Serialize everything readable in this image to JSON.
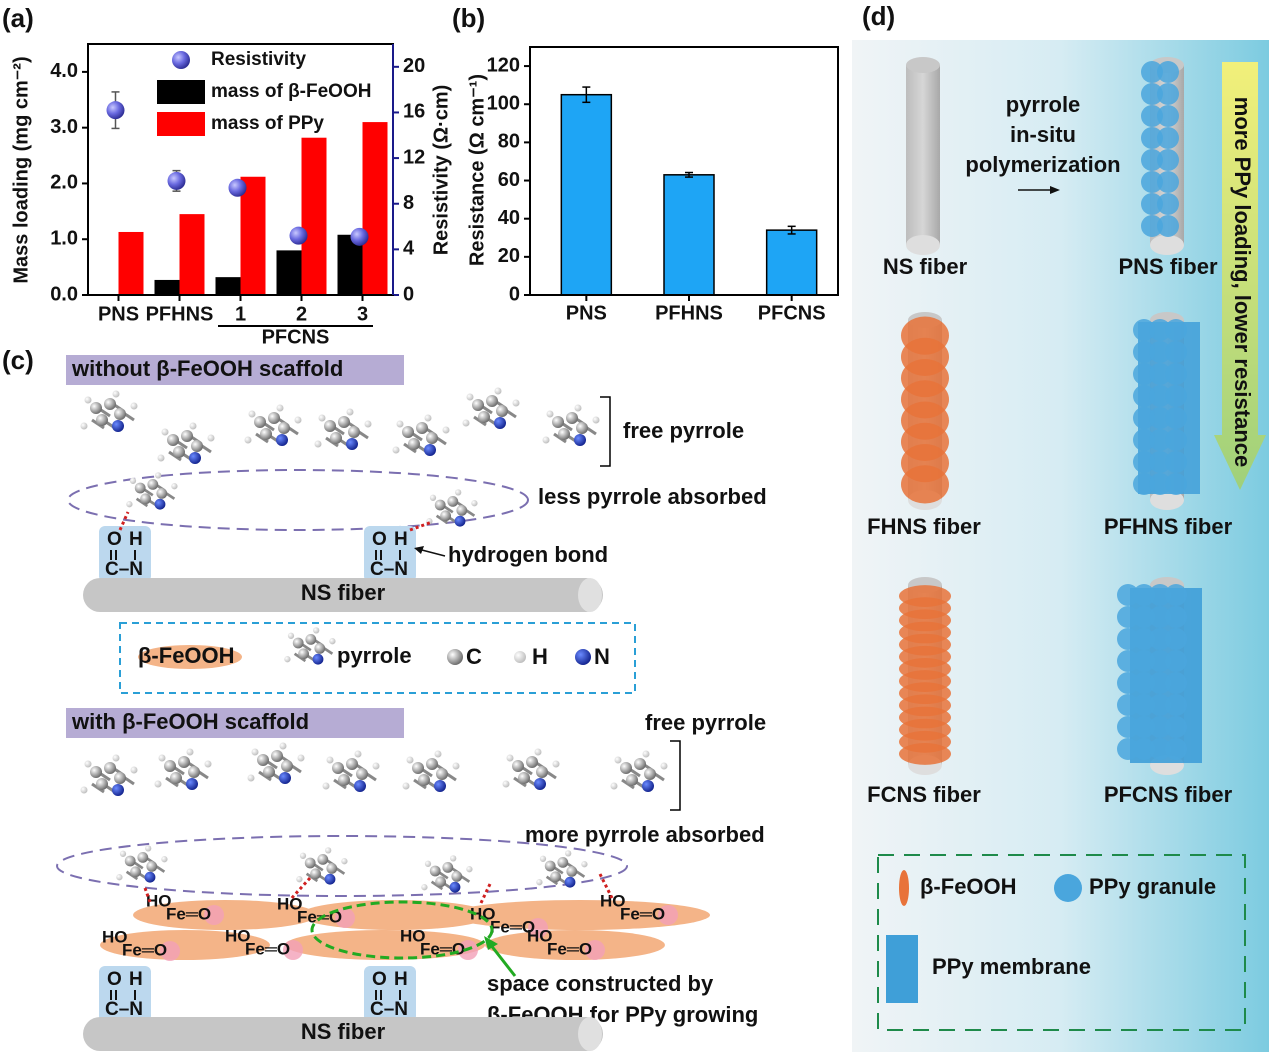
{
  "chart_data": [
    {
      "type": "bar",
      "panel_label": "(a)",
      "ylabel": "Mass loading (mg cm⁻²)",
      "y2label": "Resistivity (Ω·cm)",
      "categories": [
        "PNS",
        "PFHNS",
        "1",
        "2",
        "3"
      ],
      "category_group": "PFCNS",
      "ylim": [
        0,
        4.5
      ],
      "yticks": [
        {
          "value": 0,
          "label": "0.0"
        },
        {
          "value": 1,
          "label": "1.0"
        },
        {
          "value": 2,
          "label": "2.0"
        },
        {
          "value": 3,
          "label": "3.0"
        },
        {
          "value": 4,
          "label": "4.0"
        }
      ],
      "y2lim": [
        0,
        22
      ],
      "y2ticks": [
        0,
        4,
        8,
        12,
        16,
        20
      ],
      "series": [
        {
          "name": "Resistivity",
          "type": "scatter",
          "axis": "y2",
          "color": "#4a4ad0",
          "values": [
            16.2,
            10.0,
            9.4,
            5.2,
            5.1
          ],
          "errors": [
            1.6,
            0.9,
            0.3,
            0.2,
            0.2
          ]
        },
        {
          "name": "mass of β-FeOOH",
          "type": "bar",
          "color": "#000000",
          "values": [
            0,
            0.27,
            0.32,
            0.8,
            1.08
          ]
        },
        {
          "name": "mass of PPy",
          "type": "bar",
          "color": "#ff0000",
          "values": [
            1.13,
            1.45,
            2.12,
            2.82,
            3.1
          ]
        }
      ]
    },
    {
      "type": "bar",
      "panel_label": "(b)",
      "ylabel": "Resistance (Ω cm⁻¹)",
      "categories": [
        "PNS",
        "PFHNS",
        "PFCNS"
      ],
      "values": [
        105,
        63,
        34
      ],
      "errors": [
        4,
        1.2,
        2
      ],
      "color": "#1ea5f5",
      "ylim": [
        0,
        130
      ],
      "yticks": [
        0,
        20,
        40,
        60,
        80,
        100,
        120
      ]
    }
  ],
  "panel_c": {
    "label": "(c)",
    "top": {
      "header": "without β-FeOOH scaffold",
      "free": "free pyrrole",
      "absorbed": "less pyrrole absorbed",
      "bond": "hydrogen bond",
      "fiber": "NS fiber"
    },
    "legend": {
      "feooh": "β-FeOOH",
      "pyrrole": "pyrrole",
      "c": "C",
      "h": "H",
      "n": "N"
    },
    "bottom": {
      "header": "with β-FeOOH scaffold",
      "free": "free pyrrole",
      "absorbed": "more pyrrole absorbed",
      "space": [
        "space constructed by",
        "β-FeOOH for PPy growing"
      ],
      "fiber": "NS fiber"
    },
    "amide": [
      "O",
      "H",
      "C–N"
    ],
    "feooh_group": [
      "HO",
      "Fe═O"
    ]
  },
  "panel_d": {
    "label": "(d)",
    "process": [
      "pyrrole",
      "in-situ",
      "polymerization"
    ],
    "fibers": [
      "NS fiber",
      "PNS fiber",
      "FHNS fiber",
      "PFHNS fiber",
      "FCNS fiber",
      "PFCNS fiber"
    ],
    "trend": "more PPy loading, lower resistance",
    "legend": [
      "β-FeOOH",
      "PPy granule",
      "PPy membrane"
    ]
  }
}
